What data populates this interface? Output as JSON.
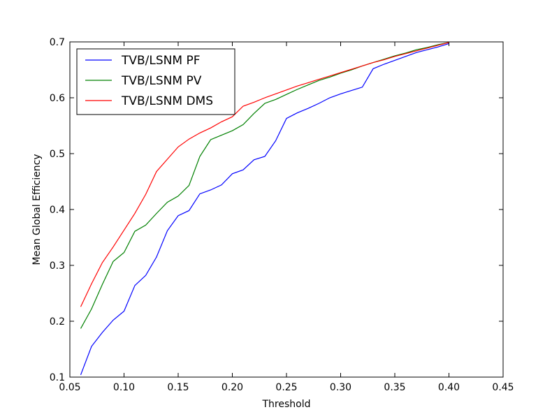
{
  "chart_data": {
    "type": "line",
    "title": "",
    "xlabel": "Threshold",
    "ylabel": "Mean Global Efficiency",
    "xlim": [
      0.05,
      0.45
    ],
    "ylim": [
      0.1,
      0.7
    ],
    "xticks": [
      "0.05",
      "0.10",
      "0.15",
      "0.20",
      "0.25",
      "0.30",
      "0.35",
      "0.40",
      "0.45"
    ],
    "yticks": [
      "0.1",
      "0.2",
      "0.3",
      "0.4",
      "0.5",
      "0.6",
      "0.7"
    ],
    "grid": false,
    "legend_position": "top-left",
    "x": [
      0.06,
      0.07,
      0.08,
      0.09,
      0.1,
      0.11,
      0.12,
      0.13,
      0.14,
      0.15,
      0.16,
      0.17,
      0.18,
      0.19,
      0.2,
      0.21,
      0.22,
      0.23,
      0.24,
      0.25,
      0.26,
      0.27,
      0.28,
      0.29,
      0.3,
      0.31,
      0.32,
      0.33,
      0.34,
      0.35,
      0.36,
      0.37,
      0.38,
      0.39,
      0.4
    ],
    "series": [
      {
        "name": "TVB/LSNM PF",
        "color": "#0000ff",
        "values": [
          0.104,
          0.155,
          0.18,
          0.202,
          0.218,
          0.264,
          0.282,
          0.315,
          0.362,
          0.389,
          0.398,
          0.428,
          0.435,
          0.444,
          0.464,
          0.471,
          0.489,
          0.495,
          0.523,
          0.563,
          0.573,
          0.581,
          0.59,
          0.6,
          0.607,
          0.613,
          0.619,
          0.652,
          0.66,
          0.667,
          0.674,
          0.681,
          0.686,
          0.691,
          0.697
        ]
      },
      {
        "name": "TVB/LSNM PV",
        "color": "#008000",
        "values": [
          0.187,
          0.222,
          0.266,
          0.307,
          0.323,
          0.361,
          0.372,
          0.393,
          0.413,
          0.424,
          0.443,
          0.495,
          0.525,
          0.533,
          0.541,
          0.552,
          0.572,
          0.59,
          0.597,
          0.606,
          0.615,
          0.623,
          0.631,
          0.637,
          0.644,
          0.65,
          0.657,
          0.663,
          0.669,
          0.675,
          0.68,
          0.686,
          0.69,
          0.695,
          0.699
        ]
      },
      {
        "name": "TVB/LSNM DMS",
        "color": "#ff0000",
        "values": [
          0.226,
          0.267,
          0.305,
          0.333,
          0.363,
          0.393,
          0.427,
          0.468,
          0.49,
          0.512,
          0.526,
          0.537,
          0.546,
          0.557,
          0.566,
          0.585,
          0.592,
          0.6,
          0.607,
          0.614,
          0.621,
          0.627,
          0.633,
          0.639,
          0.645,
          0.651,
          0.657,
          0.663,
          0.668,
          0.674,
          0.679,
          0.684,
          0.689,
          0.694,
          0.699
        ]
      }
    ]
  }
}
